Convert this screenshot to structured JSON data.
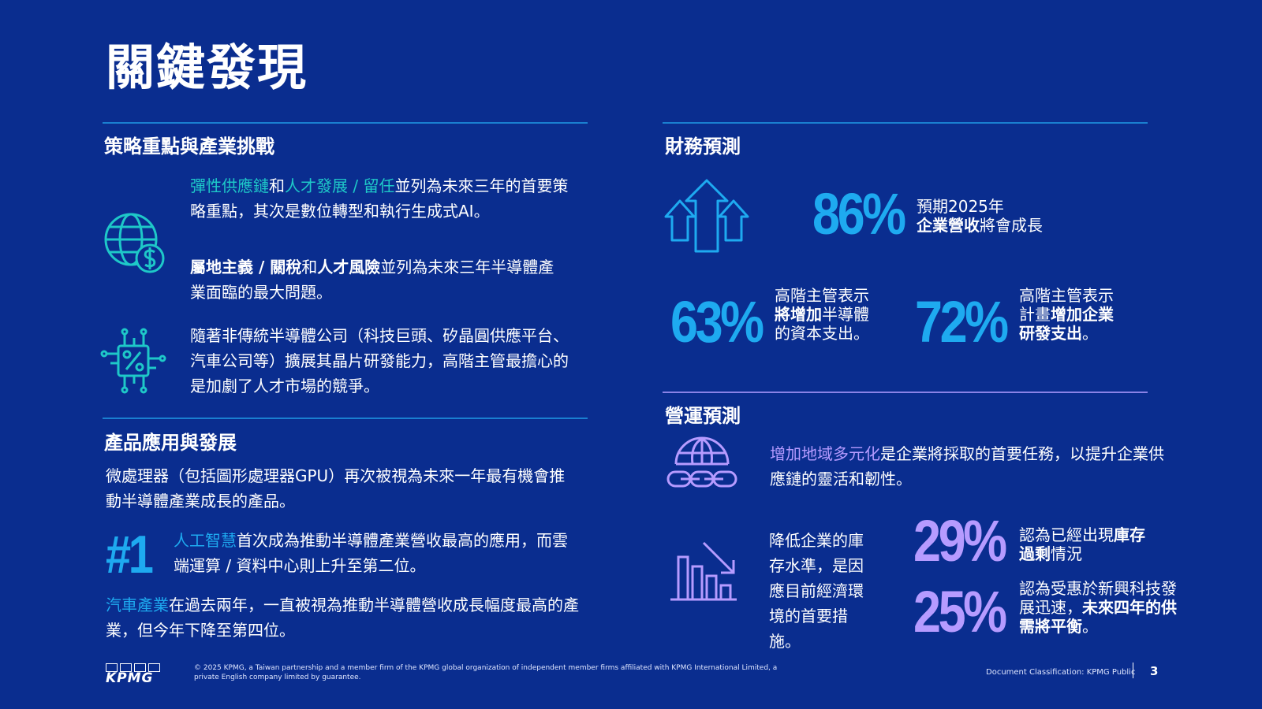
{
  "title": "關鍵發現",
  "left": {
    "strategy": {
      "heading": "策略重點與產業挑戰",
      "p1": {
        "h1": "彈性供應鏈",
        "t1": "和",
        "h2": "人才發展 / 留任",
        "t2": "並列為未來三年的首要策略重點，其次是數位轉型和執行生成式AI。"
      },
      "p2": {
        "h1": "屬地主義 / 關稅",
        "t1": "和",
        "h2": "人才風險",
        "t2": "並列為未來三年半導體產業面臨的最大問題。"
      },
      "p3": "隨著非傳統半導體公司（科技巨頭、矽晶圓供應平台、汽車公司等）擴展其晶片研發能力，高階主管最擔心的是加劇了人才市場的競爭。"
    },
    "product": {
      "heading": "產品應用與發展",
      "p1": "微處理器（包括圖形處理器GPU）再次被視為未來一年最有機會推動半導體產業成長的產品。",
      "rank": "#1",
      "p2": {
        "h": "人工智慧",
        "t": "首次成為推動半導體產業營收最高的應用，而雲端運算 / 資料中心則上升至第二位。"
      },
      "p3": {
        "h": "汽車產業",
        "t": "在過去兩年，一直被視為推動半導體營收成長幅度最高的產業，但今年下降至第四位。"
      }
    }
  },
  "right": {
    "finance": {
      "heading": "財務預測",
      "s1": {
        "value": "86%",
        "l1": "預期2025年",
        "b": "企業營收",
        "l2": "將會成長"
      },
      "s2": {
        "value": "63%",
        "l1": "高階主管表示",
        "b": "將增加",
        "l2": "半導體",
        "l3": "的資本支出。"
      },
      "s3": {
        "value": "72%",
        "l1": "高階主管表示",
        "l2a": "計畫",
        "b1": "增加企業",
        "b2": "研發支出",
        "l3": "。"
      }
    },
    "operations": {
      "heading": "營運預測",
      "p1": {
        "h": "增加地域多元化",
        "t": "是企業將採取的首要任務，以提升企業供應鏈的靈活和韌性。"
      },
      "inv": "降低企業的庫存水準，是因應目前經濟環境的首要措施。",
      "s1": {
        "value": "29%",
        "t": "認為已經出現",
        "b1": "庫存",
        "b2": "過剩",
        "t2": "情況"
      },
      "s2": {
        "value": "25%",
        "t": "認為受惠於新興科技發展迅速，",
        "b1": "未來",
        "b2": "四年的供需將平衡",
        "t2": "。"
      }
    }
  },
  "footer": {
    "logo": "KPMG",
    "copyright": "© 2025 KPMG, a Taiwan partnership and a member firm of the KPMG global organization of independent member firms affiliated with KPMG International Limited, a private English company limited by guarantee.",
    "classification": "Document Classification: KPMG Public",
    "page": "3"
  },
  "colors": {
    "background": "#0a2d8f",
    "teal": "#1ec8c8",
    "cyan": "#1eaaf0",
    "violet": "#b69bff"
  }
}
